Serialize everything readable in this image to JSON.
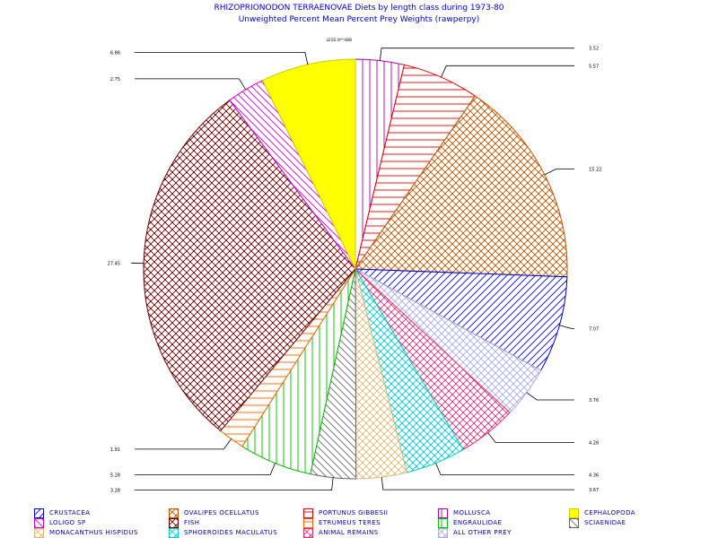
{
  "header": {
    "title": "RHIZOPRIONODON TERRAENOVAE Diets by length class during 1973-80",
    "subtitle": "Unweighted Percent Mean Percent Prey  Weights (rawperpy)"
  },
  "chart_data": {
    "type": "pie",
    "title": "RHIZOPRIONODON TERRAENOVAE Diets by length class during 1973-80",
    "subtitle": "Unweighted Percent Mean Percent Prey  Weights (rawperpy)",
    "start_label": "LESS 8**488",
    "slices": [
      {
        "category": "MOLLUSCA",
        "value": 3.52,
        "label": "3.52",
        "color": "#aa00aa",
        "pattern": "vertical"
      },
      {
        "category": "PORTUNUS GIBBESII",
        "value": 5.57,
        "label": "5.57",
        "color": "#dd0000",
        "pattern": "horizontal"
      },
      {
        "category": "OVALIPES OCELLATUS",
        "value": 15.22,
        "label": "15.22",
        "color": "#bb5500",
        "pattern": "crosshatch"
      },
      {
        "category": "CRUSTACEA",
        "value": 7.07,
        "label": "7.07",
        "color": "#0000cc",
        "pattern": "diagonal-up"
      },
      {
        "category": "ALL OTHER PREY",
        "value": 3.76,
        "label": "3.76",
        "color": "#aaaadd",
        "pattern": "crosshatch"
      },
      {
        "category": "ANIMAL REMAINS",
        "value": 4.28,
        "label": "4.28",
        "color": "#dd3377",
        "pattern": "crosshatch"
      },
      {
        "category": "SPHOEROIDES MACULATUS",
        "value": 4.36,
        "label": "4.36",
        "color": "#00cccc",
        "pattern": "crosshatch"
      },
      {
        "category": "MONACANTHUS HISPIDUS",
        "value": 3.67,
        "label": "3.67",
        "color": "#ddbb77",
        "pattern": "crosshatch"
      },
      {
        "category": "SCIAENIDAE",
        "value": 3.28,
        "label": "3.28",
        "color": "#666666",
        "pattern": "diagonal-down"
      },
      {
        "category": "ENGRAULIDAE",
        "value": 5.28,
        "label": "5.28",
        "color": "#00bb00",
        "pattern": "vertical"
      },
      {
        "category": "ETRUMEUS TERES",
        "value": 1.91,
        "label": "1.91",
        "color": "#ee6600",
        "pattern": "horizontal"
      },
      {
        "category": "FISH",
        "value": 27.45,
        "label": "27.45",
        "color": "#660000",
        "pattern": "crosshatch"
      },
      {
        "category": "LOLIGO SP",
        "value": 2.75,
        "label": "2.75",
        "color": "#cc00cc",
        "pattern": "diagonal-down"
      },
      {
        "category": "CEPHALOPODA",
        "value": 6.86,
        "label": "6.86",
        "color": "#ffff00",
        "pattern": "solid"
      }
    ],
    "legend": {
      "placement": "bottom",
      "entries": [
        {
          "label": "CRUSTACEA",
          "color": "#0000cc",
          "pattern": "diagonal-up"
        },
        {
          "label": "OVALIPES OCELLATUS",
          "color": "#bb5500",
          "pattern": "crosshatch"
        },
        {
          "label": "PORTUNUS GIBBESII",
          "color": "#dd0000",
          "pattern": "horizontal"
        },
        {
          "label": "MOLLUSCA",
          "color": "#aa00aa",
          "pattern": "vertical"
        },
        {
          "label": "CEPHALOPODA",
          "color": "#ffff00",
          "pattern": "solid"
        },
        {
          "label": "LOLIGO SP",
          "color": "#cc00cc",
          "pattern": "diagonal-down"
        },
        {
          "label": "FISH",
          "color": "#660000",
          "pattern": "crosshatch"
        },
        {
          "label": "ETRUMEUS TERES",
          "color": "#ee6600",
          "pattern": "horizontal"
        },
        {
          "label": "ENGRAULIDAE",
          "color": "#00bb00",
          "pattern": "vertical"
        },
        {
          "label": "SCIAENIDAE",
          "color": "#666666",
          "pattern": "diagonal-down"
        },
        {
          "label": "MONACANTHUS HISPIDUS",
          "color": "#ddbb77",
          "pattern": "crosshatch"
        },
        {
          "label": "SPHOEROIDES MACULATUS",
          "color": "#00cccc",
          "pattern": "crosshatch"
        },
        {
          "label": "ANIMAL REMAINS",
          "color": "#dd3377",
          "pattern": "crosshatch"
        },
        {
          "label": "ALL OTHER PREY",
          "color": "#aaaadd",
          "pattern": "crosshatch"
        }
      ]
    }
  }
}
